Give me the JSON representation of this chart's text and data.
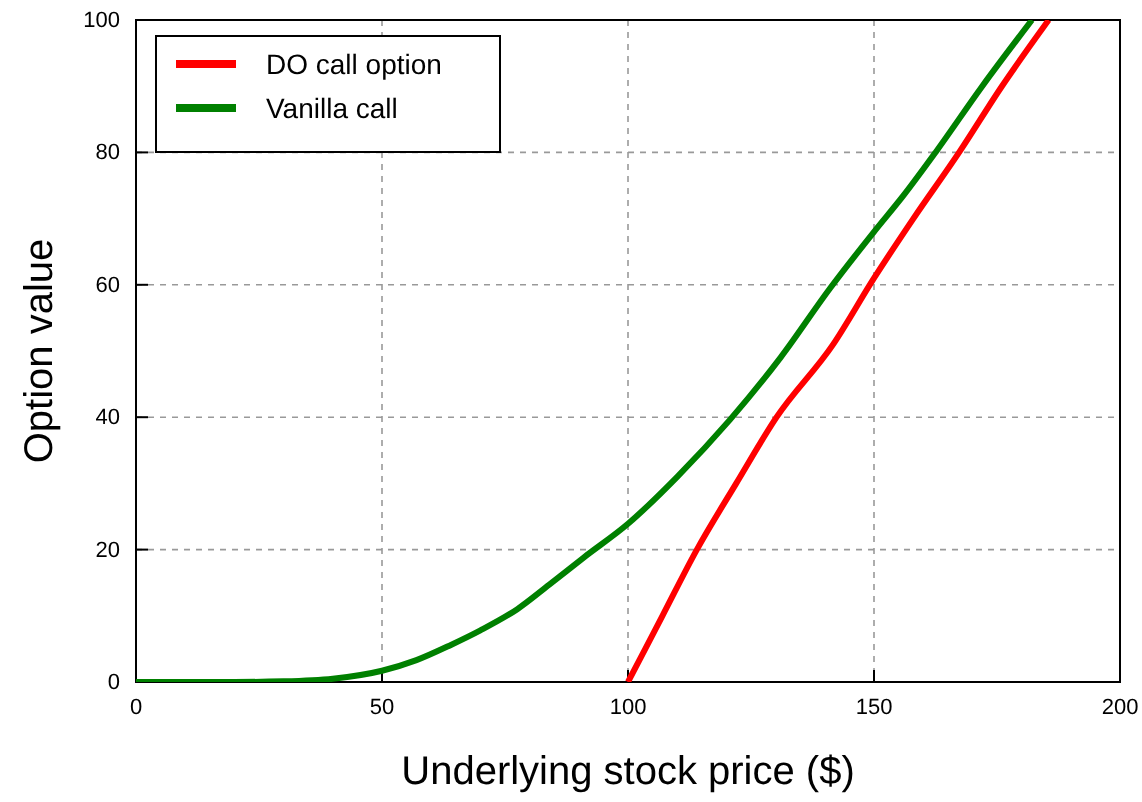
{
  "chart_data": {
    "type": "line",
    "xlabel": "Underlying stock price ($)",
    "ylabel": "Option value",
    "xlim": [
      0,
      200
    ],
    "ylim": [
      0,
      100
    ],
    "xticks": [
      0,
      50,
      100,
      150,
      200
    ],
    "yticks": [
      0,
      20,
      40,
      60,
      80,
      100
    ],
    "grid": true,
    "legend": "top left",
    "line_style": "solid",
    "marker": "none",
    "series": [
      {
        "name": "DO call option",
        "color": "#ff0000",
        "x": [
          100,
          107,
          114,
          122,
          130.2,
          141.7,
          150,
          158,
          167.3,
          176,
          185.5
        ],
        "values": [
          0,
          10,
          20,
          30,
          40,
          51,
          61,
          70,
          80,
          90,
          100
        ]
      },
      {
        "name": "Vanilla call",
        "color": "#008000",
        "x": [
          0,
          20,
          30,
          40,
          50,
          57,
          64,
          70,
          77.5,
          84,
          91,
          100,
          110,
          120.7,
          131,
          141,
          150,
          156,
          162.5,
          172,
          182.1
        ],
        "values": [
          0,
          0,
          0.1,
          0.5,
          1.7,
          3.3,
          5.6,
          7.8,
          11,
          14.7,
          18.8,
          23.9,
          31,
          39.6,
          49,
          59.4,
          68,
          73.5,
          80,
          90,
          100
        ]
      }
    ]
  }
}
